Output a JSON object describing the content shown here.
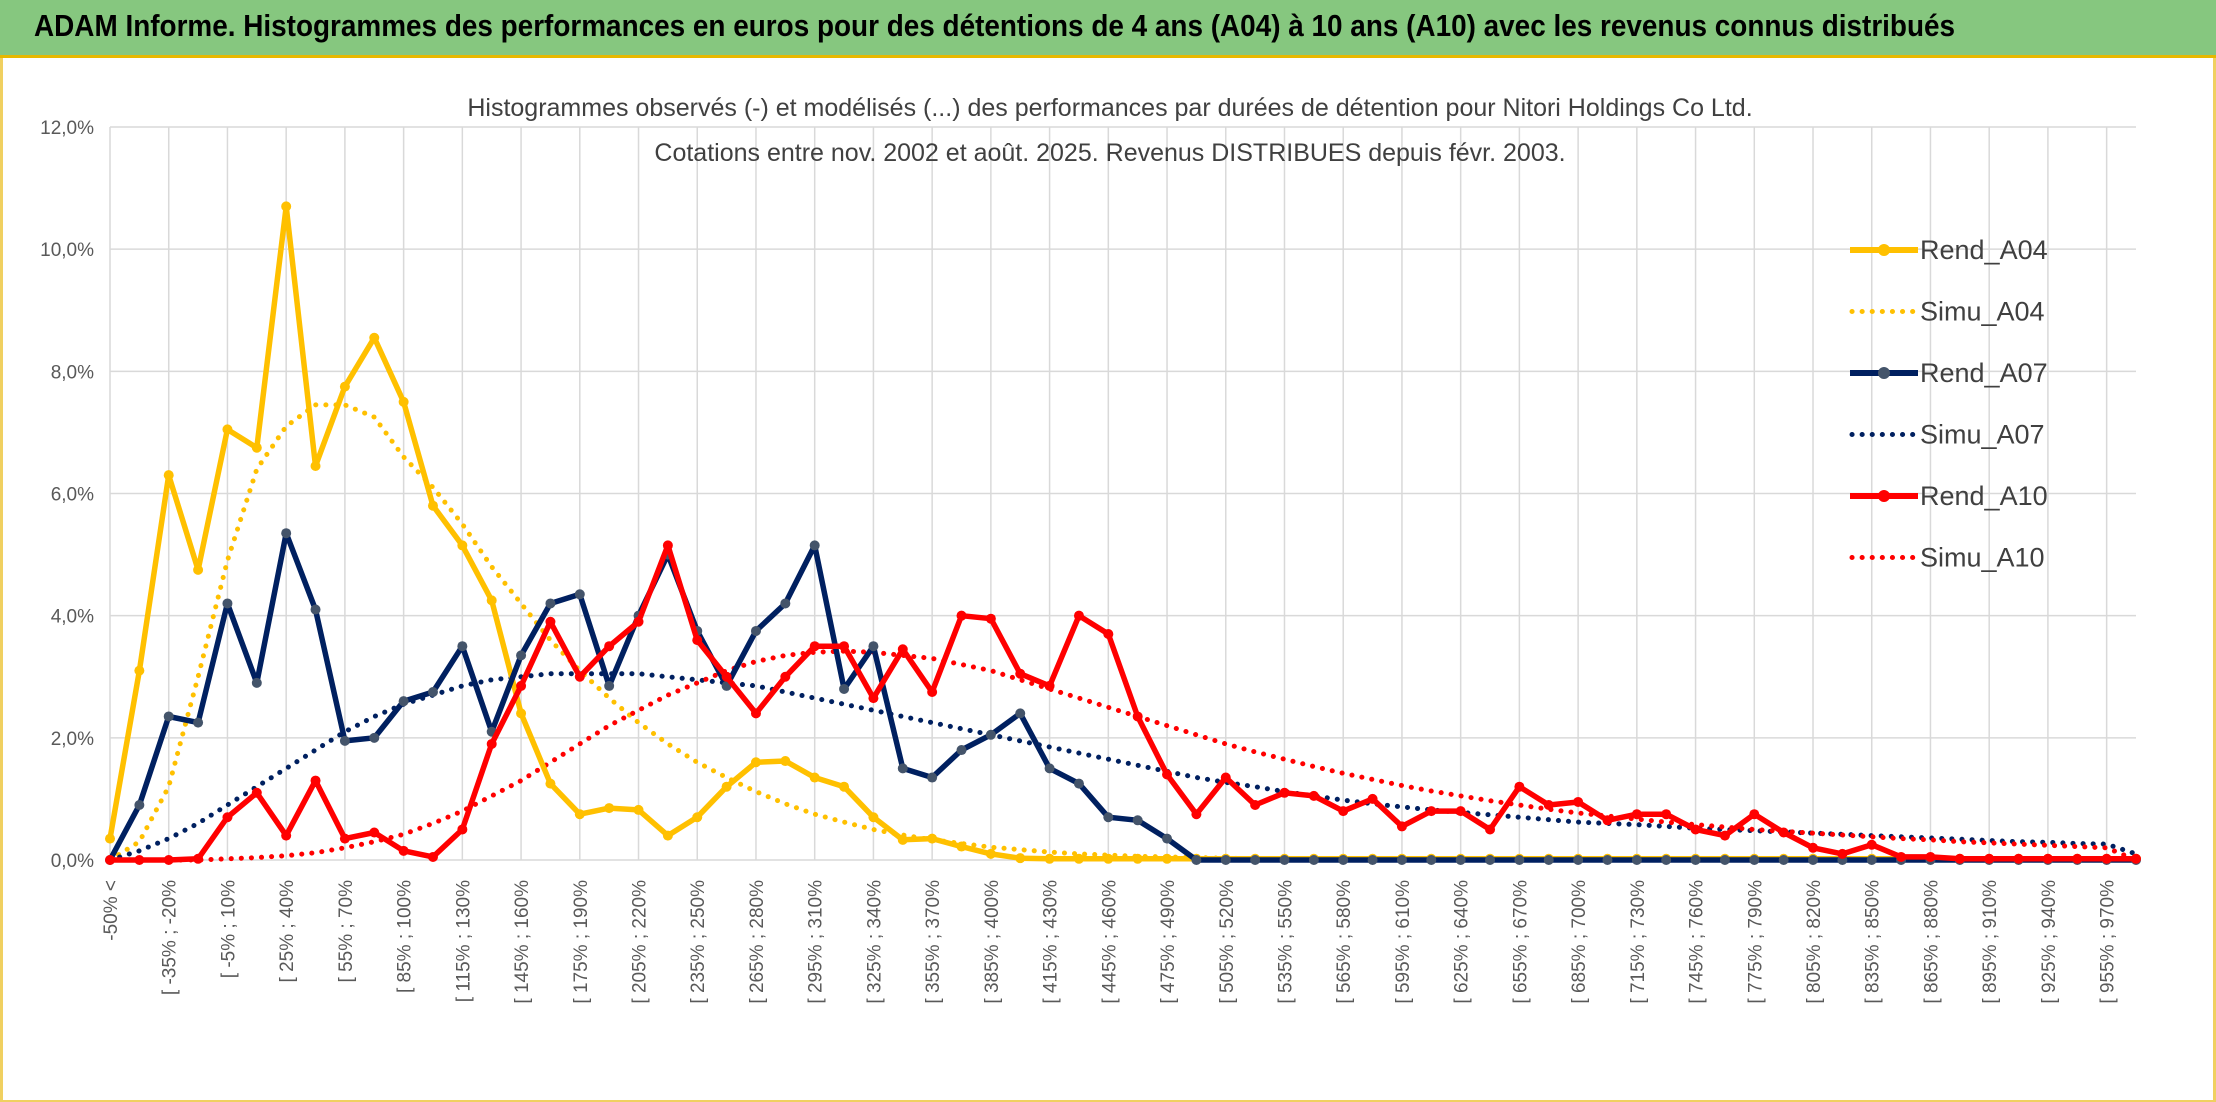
{
  "header": {
    "title": "ADAM Informe. Histogrammes des performances en euros pour des détentions de 4 ans (A04) à 10 ans (A10) avec les revenus connus distribués"
  },
  "chart_data": {
    "type": "line",
    "title": "Histogrammes observés (-) et modélisés (...) des performances par durées de détention pour Nitori Holdings Co Ltd.",
    "subtitle": "Cotations entre nov. 2002 et août. 2025. Revenus DISTRIBUES depuis févr. 2003.",
    "xlabel": "",
    "ylabel": "",
    "ylim": [
      0,
      12
    ],
    "yticks": [
      "0,0%",
      "2,0%",
      "4,0%",
      "6,0%",
      "8,0%",
      "10,0%",
      "12,0%"
    ],
    "grid": true,
    "legend_position": "right",
    "x_visible_labels": [
      "-50% <",
      "[ -35% ; -20%",
      "[ -5% ; 10%",
      "[ 25% ; 40%",
      "[ 55% ; 70%",
      "[ 85% ; 100%",
      "[ 115% ; 130%",
      "[ 145% ; 160%",
      "[ 175% ; 190%",
      "[ 205% ; 220%",
      "[ 235% ; 250%",
      "[ 265% ; 280%",
      "[ 295% ; 310%",
      "[ 325% ; 340%",
      "[ 355% ; 370%",
      "[ 385% ; 400%",
      "[ 415% ; 430%",
      "[ 445% ; 460%",
      "[ 475% ; 490%",
      "[ 505% ; 520%",
      "[ 535% ; 550%",
      "[ 565% ; 580%",
      "[ 595% ; 610%",
      "[ 625% ; 640%",
      "[ 655% ; 670%",
      "[ 685% ; 700%",
      "[ 715% ; 730%",
      "[ 745% ; 760%",
      "[ 775% ; 790%",
      "[ 805% ; 820%",
      "[ 835% ; 850%",
      "[ 865% ; 880%",
      "[ 895% ; 910%",
      "[ 925% ; 940%",
      "[ 955% ; 970%"
    ],
    "series": [
      {
        "name": "Rend_A04",
        "style": "solid",
        "color": "#ffc000",
        "values": [
          0.35,
          3.1,
          6.3,
          4.75,
          7.05,
          6.75,
          10.7,
          6.45,
          7.75,
          8.55,
          7.5,
          5.8,
          5.15,
          4.25,
          2.4,
          1.25,
          0.75,
          0.85,
          0.82,
          0.4,
          0.7,
          1.2,
          1.6,
          1.62,
          1.35,
          1.2,
          0.7,
          0.33,
          0.35,
          0.22,
          0.1,
          0.03,
          0.02,
          0.02,
          0.02,
          0.02,
          0.02,
          0.02,
          0.02,
          0.02,
          0.02,
          0.02,
          0.02,
          0.02,
          0.02,
          0.02,
          0.02,
          0.02,
          0.02,
          0.02,
          0.02,
          0.02,
          0.02,
          0.02,
          0.02,
          0.02,
          0.02,
          0.02,
          0.02,
          0.02,
          0.02,
          0.02,
          0.02,
          0.02,
          0.02,
          0.02,
          0.02,
          0.02,
          0.02,
          0.02
        ]
      },
      {
        "name": "Simu_A04",
        "style": "dotted",
        "color": "#ffc000",
        "values": [
          0.0,
          0.3,
          1.2,
          3.0,
          4.9,
          6.4,
          7.1,
          7.45,
          7.45,
          7.25,
          6.6,
          6.1,
          5.5,
          4.8,
          4.2,
          3.6,
          3.1,
          2.65,
          2.25,
          1.9,
          1.6,
          1.35,
          1.12,
          0.92,
          0.75,
          0.62,
          0.5,
          0.41,
          0.33,
          0.27,
          0.21,
          0.17,
          0.13,
          0.1,
          0.08,
          0.06,
          0.05,
          0.04,
          0.03,
          0.02,
          0.02,
          0.01,
          0.01,
          0.01,
          0.01,
          0.01,
          0.0,
          0.0,
          0.0,
          0.0,
          0.0,
          0.0,
          0.0,
          0.0,
          0.0,
          0.0,
          0.0,
          0.0,
          0.0,
          0.0,
          0.0,
          0.0,
          0.0,
          0.0,
          0.0,
          0.0,
          0.0,
          0.0,
          0.0,
          0.0
        ]
      },
      {
        "name": "Rend_A07",
        "style": "solid",
        "color": "#002060",
        "values": [
          0.0,
          0.9,
          2.35,
          2.25,
          4.2,
          2.9,
          5.35,
          4.1,
          1.95,
          2.0,
          2.6,
          2.75,
          3.5,
          2.1,
          3.35,
          4.2,
          4.35,
          2.85,
          4.0,
          5.0,
          3.75,
          2.85,
          3.75,
          4.2,
          5.15,
          2.8,
          3.5,
          1.5,
          1.35,
          1.8,
          2.05,
          2.4,
          1.5,
          1.25,
          0.7,
          0.65,
          0.35,
          0.0,
          0.0,
          0.0,
          0.0,
          0.0,
          0.0,
          0.0,
          0.0,
          0.0,
          0.0,
          0.0,
          0.0,
          0.0,
          0.0,
          0.0,
          0.0,
          0.0,
          0.0,
          0.0,
          0.0,
          0.0,
          0.0,
          0.0,
          0.0,
          0.0,
          0.0,
          0.0,
          0.0,
          0.0,
          0.0,
          0.0,
          0.0,
          0.0
        ]
      },
      {
        "name": "Simu_A07",
        "style": "dotted",
        "color": "#002060",
        "values": [
          0.0,
          0.15,
          0.35,
          0.6,
          0.9,
          1.2,
          1.5,
          1.8,
          2.1,
          2.35,
          2.55,
          2.7,
          2.85,
          2.95,
          3.0,
          3.05,
          3.05,
          3.05,
          3.05,
          3.0,
          2.95,
          2.9,
          2.85,
          2.75,
          2.65,
          2.55,
          2.45,
          2.35,
          2.25,
          2.15,
          2.05,
          1.95,
          1.85,
          1.75,
          1.65,
          1.55,
          1.45,
          1.35,
          1.27,
          1.2,
          1.12,
          1.05,
          0.98,
          0.92,
          0.87,
          0.82,
          0.78,
          0.74,
          0.7,
          0.66,
          0.62,
          0.6,
          0.58,
          0.55,
          0.52,
          0.5,
          0.48,
          0.46,
          0.44,
          0.42,
          0.4,
          0.38,
          0.36,
          0.34,
          0.32,
          0.3,
          0.29,
          0.27,
          0.26,
          0.1
        ]
      },
      {
        "name": "Rend_A10",
        "style": "solid",
        "color": "#ff0000",
        "values": [
          0.0,
          0.0,
          0.0,
          0.02,
          0.7,
          1.1,
          0.4,
          1.3,
          0.35,
          0.45,
          0.15,
          0.05,
          0.5,
          1.9,
          2.85,
          3.9,
          3.0,
          3.5,
          3.9,
          5.15,
          3.6,
          3.0,
          2.4,
          3.0,
          3.5,
          3.5,
          2.65,
          3.45,
          2.75,
          4.0,
          3.95,
          3.05,
          2.85,
          4.0,
          3.7,
          2.35,
          1.4,
          0.75,
          1.35,
          0.9,
          1.1,
          1.05,
          0.8,
          1.0,
          0.55,
          0.8,
          0.8,
          0.5,
          1.2,
          0.9,
          0.95,
          0.65,
          0.75,
          0.75,
          0.5,
          0.4,
          0.75,
          0.45,
          0.2,
          0.1,
          0.25,
          0.05,
          0.05,
          0.02,
          0.02,
          0.02,
          0.02,
          0.02,
          0.02,
          0.02
        ]
      },
      {
        "name": "Simu_A10",
        "style": "dotted",
        "color": "#ff0000",
        "values": [
          0.0,
          0.0,
          0.0,
          0.0,
          0.02,
          0.04,
          0.07,
          0.12,
          0.2,
          0.3,
          0.42,
          0.6,
          0.8,
          1.05,
          1.3,
          1.6,
          1.9,
          2.2,
          2.45,
          2.7,
          2.9,
          3.1,
          3.25,
          3.35,
          3.4,
          3.42,
          3.4,
          3.35,
          3.3,
          3.2,
          3.1,
          2.95,
          2.8,
          2.65,
          2.5,
          2.35,
          2.2,
          2.05,
          1.9,
          1.77,
          1.65,
          1.53,
          1.42,
          1.32,
          1.22,
          1.13,
          1.05,
          0.97,
          0.9,
          0.83,
          0.77,
          0.72,
          0.67,
          0.62,
          0.58,
          0.54,
          0.5,
          0.47,
          0.44,
          0.41,
          0.38,
          0.35,
          0.33,
          0.3,
          0.28,
          0.26,
          0.24,
          0.22,
          0.2,
          0.0
        ]
      }
    ]
  }
}
